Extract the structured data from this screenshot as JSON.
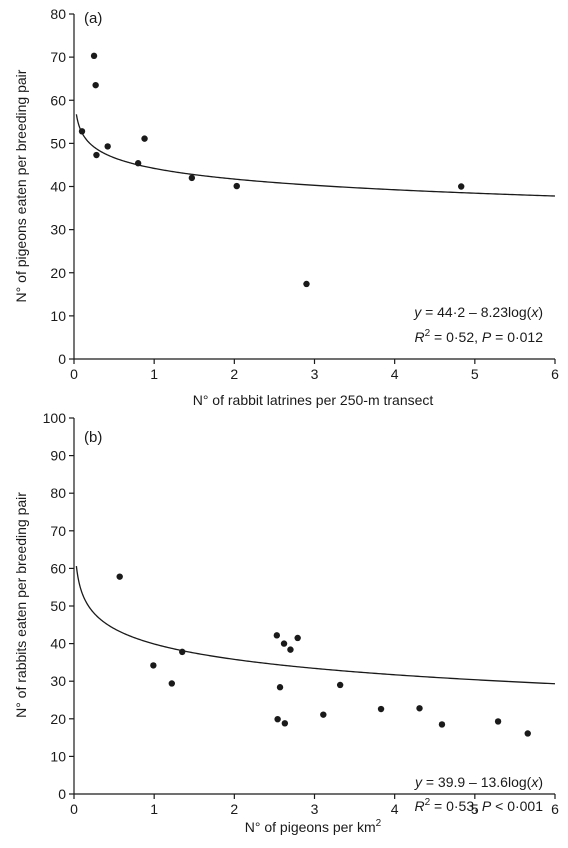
{
  "chart_data": [
    {
      "type": "scatter",
      "panel_label": "(a)",
      "xlabel": "N° of rabbit latrines per 250-m transect",
      "ylabel": "N° of pigeons eaten per breeding pair",
      "xlim": [
        0,
        6
      ],
      "ylim": [
        0,
        80
      ],
      "xticks": [
        "0",
        "1",
        "2",
        "3",
        "4",
        "5",
        "6"
      ],
      "yticks": [
        "0",
        "10",
        "20",
        "30",
        "40",
        "50",
        "60",
        "70",
        "80"
      ],
      "points": [
        {
          "x": 0.1,
          "y": 52.8
        },
        {
          "x": 0.25,
          "y": 70.3
        },
        {
          "x": 0.27,
          "y": 63.5
        },
        {
          "x": 0.28,
          "y": 47.3
        },
        {
          "x": 0.42,
          "y": 49.3
        },
        {
          "x": 0.8,
          "y": 45.4
        },
        {
          "x": 0.88,
          "y": 51.1
        },
        {
          "x": 1.47,
          "y": 42.0
        },
        {
          "x": 2.03,
          "y": 40.1
        },
        {
          "x": 2.9,
          "y": 17.4
        },
        {
          "x": 4.83,
          "y": 40.0
        }
      ],
      "fit": {
        "type": "log",
        "a": 44.2,
        "b": 8.23,
        "x_start": 0.03
      },
      "equation": {
        "line1": {
          "y": "y",
          "rest": " = 44·2 – 8.23log(",
          "x": "x",
          "close": ")"
        },
        "line2": {
          "r": "R",
          "sup": "2",
          "mid": " = 0·52, ",
          "p": "P",
          "rest": " = 0·012"
        }
      }
    },
    {
      "type": "scatter",
      "panel_label": "(b)",
      "xlabel_main": "N° of pigeons per km",
      "xlabel_sup": "2",
      "ylabel": "N° of rabbits eaten per breeding pair",
      "xlim": [
        0,
        6
      ],
      "ylim": [
        0,
        100
      ],
      "xticks": [
        "0",
        "1",
        "2",
        "3",
        "4",
        "5",
        "6"
      ],
      "yticks": [
        "0",
        "10",
        "20",
        "30",
        "40",
        "50",
        "60",
        "70",
        "80",
        "90",
        "100"
      ],
      "points": [
        {
          "x": 0.57,
          "y": 57.8
        },
        {
          "x": 0.99,
          "y": 34.2
        },
        {
          "x": 1.22,
          "y": 29.4
        },
        {
          "x": 1.35,
          "y": 37.8
        },
        {
          "x": 2.53,
          "y": 42.2
        },
        {
          "x": 2.54,
          "y": 19.9
        },
        {
          "x": 2.57,
          "y": 28.4
        },
        {
          "x": 2.62,
          "y": 40.0
        },
        {
          "x": 2.63,
          "y": 18.8
        },
        {
          "x": 2.7,
          "y": 38.4
        },
        {
          "x": 2.79,
          "y": 41.5
        },
        {
          "x": 3.11,
          "y": 21.1
        },
        {
          "x": 3.32,
          "y": 29.0
        },
        {
          "x": 3.83,
          "y": 22.6
        },
        {
          "x": 4.31,
          "y": 22.8
        },
        {
          "x": 4.59,
          "y": 18.5
        },
        {
          "x": 5.29,
          "y": 19.3
        },
        {
          "x": 5.66,
          "y": 16.1
        }
      ],
      "fit": {
        "type": "log",
        "a": 39.9,
        "b": 13.6,
        "x_start": 0.03
      },
      "equation": {
        "line1": {
          "y": "y",
          "rest": " = 39.9 – 13.6log(",
          "x": "x",
          "close": ")"
        },
        "line2": {
          "r": "R",
          "sup": "2",
          "mid": " = 0·53, ",
          "p": "P",
          "rest": " < 0·001"
        }
      }
    }
  ]
}
